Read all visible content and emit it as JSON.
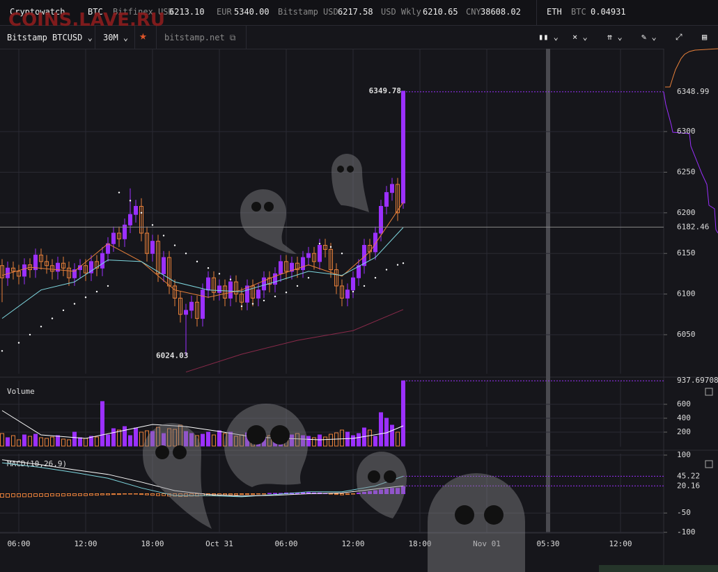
{
  "watermark": "COINS.LAVE.RU",
  "header": {
    "brand": "Cryptowatch",
    "base": "BTC",
    "tickers": [
      {
        "label": "Bitfinex USD",
        "value": "6213.10"
      },
      {
        "label": "EUR",
        "value": "5340.00"
      },
      {
        "label": "Bitstamp USD",
        "value": "6217.58"
      },
      {
        "label": "USD Wkly",
        "value": "6210.65"
      },
      {
        "label": "CNY",
        "value": "38608.02"
      }
    ],
    "pair": {
      "base": "ETH",
      "quote": "BTC",
      "value": "0.04931"
    }
  },
  "toolbar": {
    "market": "Bitstamp BTCUSD",
    "interval": "30M",
    "exchange": "bitstamp.net"
  },
  "chart_data": [
    {
      "type": "candlestick",
      "up_color": "#9b30ff",
      "down_color": "#e8803a",
      "grid": true,
      "xlim": [
        -1.6875,
        57.875
      ],
      "xticks": [
        {
          "value": 0,
          "label": "06:00"
        },
        {
          "value": 6,
          "label": "12:00"
        },
        {
          "value": 12,
          "label": "18:00"
        },
        {
          "value": 18,
          "label": "Oct 31"
        },
        {
          "value": 24,
          "label": "06:00"
        },
        {
          "value": 30,
          "label": "12:00"
        },
        {
          "value": 36,
          "label": "18:00"
        },
        {
          "value": 42,
          "label": "Nov 01"
        },
        {
          "value": 47.5,
          "label": "05:30"
        },
        {
          "value": 54,
          "label": "12:00"
        }
      ],
      "cursor_x": 47.5,
      "ylim": [
        6002,
        6402
      ],
      "yticks": [
        6050,
        6100,
        6150,
        6200,
        6250,
        6300
      ],
      "x": [
        -1.5,
        -1,
        -0.5,
        0,
        0.5,
        1,
        1.5,
        2,
        2.5,
        3,
        3.5,
        4,
        4.5,
        5,
        5.5,
        6,
        6.5,
        7,
        7.5,
        8,
        8.5,
        9,
        9.5,
        10,
        10.5,
        11,
        11.5,
        12,
        12.5,
        13,
        13.5,
        14,
        14.5,
        15,
        15.5,
        16,
        16.5,
        17,
        17.5,
        18,
        18.5,
        19,
        19.5,
        20,
        20.5,
        21,
        21.5,
        22,
        22.5,
        23,
        23.5,
        24,
        24.5,
        25,
        25.5,
        26,
        26.5,
        27,
        27.5,
        28,
        28.5,
        29,
        29.5,
        30,
        30.5,
        31,
        31.5,
        32,
        32.5,
        33,
        33.5,
        34,
        34.5
      ],
      "open": [
        6135,
        6120,
        6132,
        6128,
        6122,
        6136,
        6130,
        6148,
        6140,
        6135,
        6128,
        6138,
        6132,
        6120,
        6130,
        6135,
        6126,
        6140,
        6132,
        6150,
        6162,
        6175,
        6168,
        6185,
        6198,
        6208,
        6175,
        6150,
        6165,
        6125,
        6145,
        6110,
        6095,
        6075,
        6080,
        6090,
        6070,
        6105,
        6120,
        6102,
        6110,
        6095,
        6115,
        6100,
        6090,
        6110,
        6095,
        6105,
        6120,
        6112,
        6125,
        6140,
        6128,
        6138,
        6130,
        6145,
        6150,
        6140,
        6160,
        6155,
        6130,
        6110,
        6095,
        6105,
        6120,
        6135,
        6160,
        6152,
        6175,
        6208,
        6225,
        6235,
        6212
      ],
      "high": [
        6143,
        6140,
        6140,
        6136,
        6144,
        6144,
        6156,
        6156,
        6148,
        6143,
        6146,
        6146,
        6140,
        6138,
        6143,
        6143,
        6148,
        6148,
        6158,
        6170,
        6183,
        6183,
        6193,
        6230,
        6216,
        6218,
        6183,
        6173,
        6173,
        6153,
        6153,
        6118,
        6103,
        6088,
        6098,
        6098,
        6113,
        6128,
        6128,
        6118,
        6118,
        6123,
        6123,
        6108,
        6118,
        6118,
        6113,
        6128,
        6128,
        6133,
        6148,
        6148,
        6146,
        6146,
        6153,
        6158,
        6158,
        6168,
        6168,
        6163,
        6138,
        6118,
        6113,
        6128,
        6143,
        6168,
        6168,
        6183,
        6216,
        6233,
        6243,
        6243,
        6349.78
      ],
      "low": [
        6090,
        6110,
        6118,
        6112,
        6112,
        6120,
        6120,
        6130,
        6125,
        6118,
        6118,
        6122,
        6110,
        6110,
        6120,
        6116,
        6116,
        6122,
        6122,
        6140,
        6152,
        6158,
        6158,
        6175,
        6188,
        6165,
        6140,
        6140,
        6115,
        6115,
        6100,
        6085,
        6065,
        6024.03,
        6070,
        6060,
        6060,
        6095,
        6092,
        6092,
        6085,
        6085,
        6090,
        6080,
        6080,
        6085,
        6085,
        6095,
        6102,
        6102,
        6115,
        6118,
        6118,
        6120,
        6120,
        6135,
        6130,
        6130,
        6145,
        6120,
        6100,
        6085,
        6085,
        6095,
        6110,
        6125,
        6142,
        6142,
        6165,
        6198,
        6215,
        6190,
        6205
      ],
      "close": [
        6120,
        6132,
        6128,
        6122,
        6136,
        6130,
        6148,
        6140,
        6135,
        6128,
        6138,
        6132,
        6120,
        6130,
        6135,
        6126,
        6140,
        6132,
        6150,
        6162,
        6175,
        6168,
        6185,
        6198,
        6208,
        6175,
        6150,
        6165,
        6125,
        6145,
        6110,
        6095,
        6075,
        6080,
        6090,
        6070,
        6105,
        6120,
        6102,
        6110,
        6095,
        6115,
        6100,
        6090,
        6110,
        6095,
        6105,
        6120,
        6112,
        6125,
        6140,
        6128,
        6138,
        6130,
        6145,
        6150,
        6140,
        6160,
        6155,
        6130,
        6110,
        6095,
        6105,
        6120,
        6135,
        6160,
        6152,
        6175,
        6208,
        6225,
        6235,
        6200,
        6349.78
      ],
      "overlays": [
        {
          "color": "#e8803a",
          "x": [
            -1.5,
            1,
            5,
            8,
            11,
            14,
            17,
            20,
            23,
            26,
            29,
            31.5,
            34.5
          ],
          "values": [
            6123,
            6133,
            6128,
            6162,
            6140,
            6105,
            6096,
            6105,
            6122,
            6136,
            6122,
            6152,
            6213
          ]
        },
        {
          "color": "#7fd8e0",
          "x": [
            -1.5,
            2,
            5,
            8,
            11,
            14,
            17,
            20,
            23,
            26,
            29,
            32,
            34.5
          ],
          "values": [
            6070,
            6105,
            6115,
            6142,
            6140,
            6115,
            6105,
            6103,
            6115,
            6128,
            6123,
            6145,
            6182
          ]
        },
        {
          "color": "#8a2a4a",
          "x": [
            15,
            20,
            25,
            30,
            34.5
          ],
          "values": [
            6004,
            6026,
            6043,
            6055,
            6081
          ]
        }
      ],
      "sar": {
        "color": "#ffffff",
        "x": [
          -1.5,
          0,
          1,
          2,
          3,
          4,
          5,
          6,
          7,
          8,
          9,
          10,
          11,
          12,
          13,
          14,
          15,
          16,
          17,
          18,
          19,
          20,
          21,
          22,
          23,
          24,
          25,
          26,
          27,
          28,
          29,
          30,
          31,
          32,
          33,
          34,
          34.5
        ],
        "values": [
          6030,
          6040,
          6050,
          6060,
          6070,
          6080,
          6088,
          6096,
          6103,
          6110,
          6225,
          6215,
          6200,
          6185,
          6172,
          6160,
          6150,
          6140,
          6132,
          6125,
          6118,
          6085,
          6088,
          6092,
          6097,
          6102,
          6110,
          6120,
          6162,
          6158,
          6150,
          6103,
          6110,
          6120,
          6130,
          6136,
          6138
        ]
      },
      "annotations": [
        {
          "x": 34.5,
          "value": 6349.78
        },
        {
          "x": 15,
          "value": 6024.03
        }
      ],
      "last_price": 6348.99,
      "level": 6182.46
    },
    {
      "type": "bar",
      "title": "Volume",
      "ylim": [
        0,
        940
      ],
      "yticks": [
        200,
        400,
        600
      ],
      "values": [
        180,
        120,
        150,
        90,
        160,
        140,
        170,
        120,
        110,
        130,
        150,
        100,
        90,
        200,
        120,
        110,
        140,
        130,
        640,
        160,
        250,
        230,
        280,
        150,
        260,
        200,
        220,
        210,
        270,
        180,
        250,
        240,
        300,
        210,
        180,
        150,
        170,
        200,
        160,
        220,
        180,
        200,
        140,
        160,
        190,
        230,
        160,
        140,
        150,
        200,
        180,
        170,
        160,
        180,
        150,
        140,
        120,
        160,
        130,
        170,
        190,
        230,
        200,
        150,
        180,
        260,
        230,
        140,
        480,
        400,
        300,
        200,
        937.69708
      ],
      "ma": {
        "color": "#ffffff",
        "x": [
          -1.5,
          0,
          2,
          6,
          9,
          12,
          15,
          18,
          21,
          24,
          27,
          30,
          33,
          34.5
        ],
        "values": [
          510,
          360,
          160,
          110,
          210,
          310,
          280,
          210,
          130,
          110,
          90,
          110,
          190,
          290
        ]
      }
    },
    {
      "type": "macd",
      "title": "MACD(10,26,9)",
      "ylim": [
        -100,
        103.6
      ],
      "yticks": [
        100,
        -50,
        -100
      ],
      "series": [
        {
          "color": "#7fd8e0",
          "x": [
            -1.5,
            2,
            5,
            8,
            11,
            14,
            17,
            20,
            23,
            26,
            29,
            32,
            34.5
          ],
          "values": [
            80,
            68,
            55,
            40,
            15,
            -5,
            -5,
            -8,
            -2,
            5,
            5,
            20,
            45.22
          ]
        },
        {
          "color": "#ffffff",
          "x": [
            -1.5,
            2,
            5,
            8,
            11,
            14,
            17,
            20,
            23,
            26,
            29,
            32,
            34.5
          ],
          "values": [
            88,
            75,
            62,
            50,
            30,
            8,
            -2,
            -6,
            -4,
            0,
            2,
            12,
            20.16
          ]
        }
      ],
      "histogram": [
        -9,
        -9,
        -8,
        -8,
        -8,
        -8,
        -7,
        -7,
        -7,
        -6,
        -6,
        -6,
        -5,
        -5,
        -5,
        -5,
        -4,
        -4,
        -3,
        -3,
        -2,
        -2,
        -1,
        -1,
        -1,
        -2,
        -3,
        -4,
        -5,
        -5,
        -6,
        -6,
        -7,
        -7,
        -6,
        -6,
        -5,
        -5,
        -4,
        -4,
        -3,
        -3,
        -3,
        -2,
        -2,
        -2,
        -1,
        -1,
        1,
        1,
        1,
        2,
        2,
        2,
        3,
        3,
        2,
        2,
        1,
        -1,
        -2,
        -3,
        -2,
        -1,
        2,
        4,
        6,
        8,
        10,
        12,
        14,
        14,
        18
      ]
    }
  ]
}
